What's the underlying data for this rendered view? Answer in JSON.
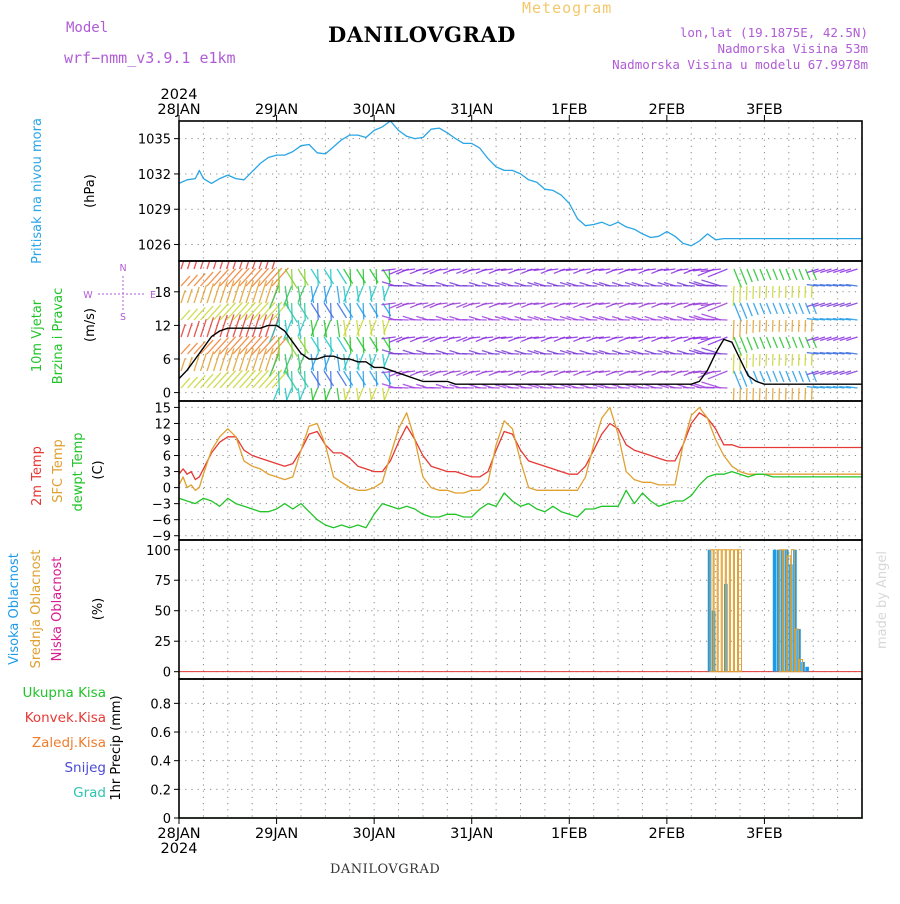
{
  "header": {
    "product": "Meteogram",
    "model_label": "Model",
    "model_name": "wrf−nmm_v3.9.1  e1km",
    "station": "DANILOVGRAD",
    "lonlat": "lon,lat (19.1875E, 42.5N)",
    "elevation": "Nadmorska Visina 53m",
    "model_elevation": "Nadmorska Visina u modelu 67.9978m"
  },
  "footer": {
    "station": "DANILOVGRAD"
  },
  "watermark": "made by Angel",
  "time_axis": {
    "year_top": "2024",
    "year_bottom": "2024",
    "labels": [
      "28JAN",
      "29JAN",
      "30JAN",
      "31JAN",
      "1FEB",
      "2FEB",
      "3FEB"
    ]
  },
  "chart_data": [
    {
      "type": "line",
      "panel": "pressure",
      "ylabel_colored": "Pritisak na nivou mora",
      "unit": "(hPa)",
      "y_ticks": [
        1026,
        1029,
        1032,
        1035
      ],
      "ylim": [
        1024.6,
        1036.5
      ],
      "x_unit": "hours from 28JAN 00",
      "series": [
        {
          "color": "#2aa5e6",
          "x": [
            0,
            2,
            4,
            5,
            6,
            8,
            10,
            12,
            14,
            16,
            18,
            20,
            22,
            24,
            26,
            28,
            30,
            32,
            34,
            36,
            38,
            40,
            42,
            44,
            46,
            48,
            50,
            52,
            54,
            56,
            58,
            60,
            62,
            64,
            66,
            68,
            70,
            72,
            74,
            76,
            78,
            80,
            82,
            84,
            86,
            88,
            90,
            92,
            94,
            96,
            98,
            100,
            102,
            104,
            106,
            108,
            110,
            112,
            114,
            116,
            118,
            120,
            122,
            124,
            126,
            128,
            130,
            132,
            134,
            136,
            138,
            140,
            142,
            144,
            146,
            148,
            150,
            152,
            154,
            156,
            158,
            160,
            162,
            164,
            166,
            168
          ],
          "values": [
            1031.2,
            1031.5,
            1031.6,
            1032.3,
            1031.6,
            1031.2,
            1031.6,
            1031.9,
            1031.6,
            1031.5,
            1032.2,
            1032.9,
            1033.4,
            1033.6,
            1033.6,
            1033.9,
            1034.4,
            1034.5,
            1033.8,
            1033.7,
            1034.3,
            1034.9,
            1035.3,
            1035.3,
            1035.1,
            1035.7,
            1036.0,
            1036.5,
            1035.7,
            1035.2,
            1035.0,
            1035.1,
            1035.8,
            1035.9,
            1035.5,
            1035.0,
            1034.6,
            1034.6,
            1034.2,
            1033.3,
            1032.6,
            1032.3,
            1032.3,
            1032.0,
            1031.5,
            1031.3,
            1030.7,
            1030.6,
            1030.2,
            1029.5,
            1028.2,
            1027.6,
            1027.7,
            1027.9,
            1027.6,
            1027.9,
            1027.5,
            1027.3,
            1026.9,
            1026.6,
            1026.7,
            1027.1,
            1026.7,
            1026.1,
            1025.9,
            1026.3,
            1026.9,
            1026.4,
            1026.5,
            1026.5,
            1026.5,
            1026.5,
            1026.5,
            1026.5,
            1026.5,
            1026.5,
            1026.5,
            1026.5,
            1026.5,
            1026.5,
            1026.5,
            1026.5,
            1026.5,
            1026.5,
            1026.5,
            1026.5
          ]
        }
      ]
    },
    {
      "type": "line",
      "panel": "wind",
      "ylabel_green": "10m Vjetar",
      "ylabel_green2": "Brzina i Pravac",
      "unit": "(m/s)",
      "compass": {
        "n": "N",
        "s": "S",
        "e": "E",
        "w": "W"
      },
      "y_ticks": [
        0,
        6,
        12,
        18
      ],
      "ylim": [
        -1.5,
        23.5
      ],
      "series": [
        {
          "color": "#000000",
          "x": [
            0,
            2,
            4,
            6,
            8,
            10,
            12,
            14,
            16,
            18,
            20,
            22,
            24,
            26,
            28,
            30,
            32,
            34,
            36,
            38,
            40,
            42,
            44,
            46,
            48,
            50,
            52,
            54,
            56,
            58,
            60,
            62,
            64,
            66,
            68,
            70,
            72,
            74,
            76,
            78,
            80,
            82,
            84,
            86,
            88,
            90,
            92,
            94,
            96,
            98,
            100,
            102,
            104,
            106,
            108,
            110,
            112,
            114,
            116,
            118,
            120,
            122,
            124,
            126,
            128,
            130,
            132,
            134,
            136,
            138,
            140,
            142,
            144,
            146,
            148,
            150,
            152,
            154,
            156,
            158,
            160,
            162,
            164,
            166,
            168
          ],
          "values": [
            2.5,
            4,
            6,
            8,
            10,
            11,
            11.5,
            11.5,
            11.5,
            11.5,
            11.5,
            12,
            12,
            11,
            9,
            7,
            6,
            6,
            6.5,
            6.5,
            6,
            6,
            5.5,
            5.5,
            4.5,
            4.5,
            4,
            3.5,
            3,
            2.5,
            2,
            2,
            2,
            2,
            1.5,
            1.5,
            1.5,
            1.5,
            1.5,
            1.5,
            1.5,
            1.5,
            1.5,
            1.5,
            1.5,
            1.5,
            1.5,
            1.5,
            1.5,
            1.5,
            1.5,
            1.5,
            1.5,
            1.5,
            1.5,
            1.5,
            1.5,
            1.5,
            1.5,
            1.5,
            1.5,
            1.5,
            1.5,
            1.5,
            2,
            4,
            7,
            9.5,
            9,
            6,
            3,
            2,
            1.5,
            1.5,
            1.5,
            1.5,
            1.5,
            1.5,
            1.5,
            1.5,
            1.5,
            1.5,
            1.5,
            1.5,
            1.5
          ]
        }
      ]
    },
    {
      "type": "line",
      "panel": "temperature",
      "ylabel_2m": "2m Temp",
      "ylabel_sfc": "SFC Temp",
      "ylabel_dew": "dewpt Temp",
      "unit": "(C)",
      "y_ticks": [
        -9,
        -6,
        -3,
        0,
        3,
        6,
        9,
        12,
        15
      ],
      "ylim": [
        -9.8,
        16.2
      ],
      "series": [
        {
          "name": "2m Temp",
          "color": "#e53935",
          "x": [
            0,
            1,
            2,
            3,
            4,
            5,
            6,
            8,
            10,
            12,
            14,
            16,
            18,
            20,
            22,
            24,
            26,
            28,
            30,
            32,
            34,
            36,
            38,
            40,
            42,
            44,
            46,
            48,
            50,
            52,
            54,
            56,
            58,
            60,
            62,
            64,
            66,
            68,
            70,
            72,
            74,
            76,
            78,
            80,
            82,
            84,
            86,
            88,
            90,
            92,
            94,
            96,
            98,
            100,
            102,
            104,
            106,
            108,
            110,
            112,
            114,
            116,
            118,
            120,
            122,
            124,
            126,
            128,
            130,
            132,
            134,
            136,
            138,
            140,
            142,
            144,
            146,
            148,
            150,
            152,
            154,
            156,
            158,
            160,
            162,
            164,
            166,
            168
          ],
          "values": [
            2.5,
            3.5,
            2.5,
            3,
            1.5,
            2,
            3.5,
            6.5,
            8.5,
            9.5,
            9.5,
            7,
            6,
            5.5,
            5,
            4.5,
            4,
            4.5,
            7,
            10,
            10.5,
            8,
            6.5,
            6.5,
            5.5,
            4,
            3.5,
            3,
            3,
            5,
            8.5,
            11.5,
            9,
            6,
            4,
            3.5,
            3,
            3,
            2.5,
            2,
            2,
            3,
            7,
            10.5,
            10,
            7,
            5,
            4.5,
            4,
            3.5,
            3,
            2.5,
            2.5,
            4,
            7,
            10,
            12,
            11,
            8,
            7,
            6.5,
            6,
            5.5,
            5,
            5,
            8,
            12,
            14,
            13,
            11,
            8,
            8,
            7.5,
            7.5,
            7.5,
            7.5,
            7.5,
            7.5,
            7.5,
            7.5,
            7.5,
            7.5,
            7.5,
            7.5,
            7.5,
            7.5,
            7.5,
            7.5
          ]
        },
        {
          "name": "SFC Temp",
          "color": "#e0a030",
          "x": [
            0,
            1,
            2,
            3,
            4,
            5,
            6,
            8,
            10,
            12,
            14,
            16,
            18,
            20,
            22,
            24,
            26,
            28,
            30,
            32,
            34,
            36,
            38,
            40,
            42,
            44,
            46,
            48,
            50,
            52,
            54,
            56,
            58,
            60,
            62,
            64,
            66,
            68,
            70,
            72,
            74,
            76,
            78,
            80,
            82,
            84,
            86,
            88,
            90,
            92,
            94,
            96,
            98,
            100,
            102,
            104,
            106,
            108,
            110,
            112,
            114,
            116,
            118,
            120,
            122,
            124,
            126,
            128,
            130,
            132,
            134,
            136,
            138,
            140,
            142,
            144,
            146,
            148,
            150,
            152,
            154,
            156,
            158,
            160,
            162,
            164,
            166,
            168
          ],
          "values": [
            0.5,
            2,
            0,
            0.5,
            -0.5,
            0,
            2.5,
            7,
            9.5,
            11,
            9.5,
            5,
            4,
            3.5,
            2.5,
            2,
            1.5,
            2,
            7,
            11.5,
            12,
            8,
            2,
            1,
            0,
            -0.5,
            -0.5,
            0,
            1,
            6,
            11,
            14,
            9,
            2,
            0,
            -0.5,
            -0.5,
            -1,
            -1,
            -0.5,
            -0.5,
            1,
            8,
            12.5,
            11,
            5,
            0,
            -0.5,
            -0.5,
            -0.5,
            -0.5,
            -0.5,
            -0.5,
            2,
            8,
            13,
            15,
            10,
            3,
            1.5,
            1,
            1,
            0.5,
            0.5,
            0.5,
            8,
            13.5,
            15,
            13,
            9,
            6,
            4,
            3,
            2.5,
            2.5,
            2.5,
            2.5,
            2.5,
            2.5,
            2.5,
            2.5,
            2.5,
            2.5,
            2.5,
            2.5,
            2.5,
            2.5,
            2.5
          ]
        },
        {
          "name": "dewpt Temp",
          "color": "#22c42a",
          "x": [
            0,
            2,
            4,
            6,
            8,
            10,
            12,
            14,
            16,
            18,
            20,
            22,
            24,
            26,
            28,
            30,
            32,
            34,
            36,
            38,
            40,
            42,
            44,
            46,
            48,
            50,
            52,
            54,
            56,
            58,
            60,
            62,
            64,
            66,
            68,
            70,
            72,
            74,
            76,
            78,
            80,
            82,
            84,
            86,
            88,
            90,
            92,
            94,
            96,
            98,
            100,
            102,
            104,
            106,
            108,
            110,
            112,
            114,
            116,
            118,
            120,
            122,
            124,
            126,
            128,
            130,
            132,
            134,
            136,
            138,
            140,
            142,
            144,
            146,
            148,
            150,
            152,
            154,
            156,
            158,
            160,
            162,
            164,
            166,
            168
          ],
          "values": [
            -2,
            -2.5,
            -3,
            -2,
            -2.5,
            -3.5,
            -2,
            -3,
            -3.5,
            -4,
            -4.5,
            -4.5,
            -4,
            -3,
            -4,
            -3,
            -4.5,
            -6,
            -7,
            -7.5,
            -7,
            -7.5,
            -7,
            -7.5,
            -5,
            -3,
            -3.5,
            -4,
            -3.5,
            -4,
            -5,
            -5.5,
            -5.5,
            -5,
            -5,
            -5.5,
            -5.5,
            -4,
            -3,
            -3.5,
            -1,
            -2.5,
            -3.5,
            -3,
            -4,
            -4.5,
            -3.5,
            -4.5,
            -5,
            -5.5,
            -4,
            -4,
            -3.5,
            -3.5,
            -3.5,
            -0.5,
            -3,
            -1,
            -2.5,
            -3.5,
            -3,
            -2.5,
            -2.5,
            -1.5,
            0.5,
            2,
            2.5,
            2.5,
            3,
            2.5,
            2,
            2.5,
            2.5,
            2,
            2,
            2,
            2,
            2,
            2,
            2,
            2,
            2,
            2,
            2,
            2
          ]
        }
      ]
    },
    {
      "type": "bar",
      "panel": "cloud",
      "ylabel_high": "Visoka Oblacnost",
      "ylabel_mid": "Srednja Oblacnost",
      "ylabel_low": "Niska Oblacnost",
      "unit": "(%)",
      "y_ticks": [
        0,
        25,
        50,
        75,
        100
      ],
      "ylim": [
        -6,
        108
      ],
      "series": [
        {
          "name": "Visoka Oblacnost",
          "color": "#1e9be8",
          "x": [
            130.5,
            131.5,
            134.5,
            146.5,
            147.5,
            148.5,
            149.5,
            150.5,
            151.5,
            152.5,
            153.5,
            154.5
          ],
          "values": [
            100,
            50,
            72,
            100,
            100,
            100,
            100,
            88,
            100,
            35,
            8,
            4
          ]
        },
        {
          "name": "Srednja Oblacnost",
          "color": "#e0a030",
          "x": [
            131,
            132,
            133,
            134,
            135,
            136,
            137,
            138,
            148,
            149,
            150,
            151,
            152,
            153
          ],
          "values": [
            100,
            100,
            100,
            100,
            100,
            100,
            100,
            100,
            100,
            100,
            95,
            100,
            35,
            10
          ]
        }
      ]
    },
    {
      "type": "line",
      "panel": "precip",
      "ylabel": "1hr Precip (mm)",
      "legend": [
        {
          "name": "Ukupna Kisa",
          "color": "#22c42a"
        },
        {
          "name": "Konvek.Kisa",
          "color": "#e53935"
        },
        {
          "name": "Zaledj.Kisa",
          "color": "#f07c2a"
        },
        {
          "name": "Snijeg",
          "color": "#4a4ad6"
        },
        {
          "name": "Grad",
          "color": "#2ec4b0"
        }
      ],
      "y_ticks": [
        0,
        0.2,
        0.4,
        0.6,
        0.8
      ],
      "ylim": [
        0,
        0.97
      ],
      "series": [
        {
          "name": "Ukupna Kisa",
          "color": "#22c42a",
          "x": [
            0,
            168
          ],
          "values": [
            0,
            0
          ]
        }
      ]
    }
  ]
}
